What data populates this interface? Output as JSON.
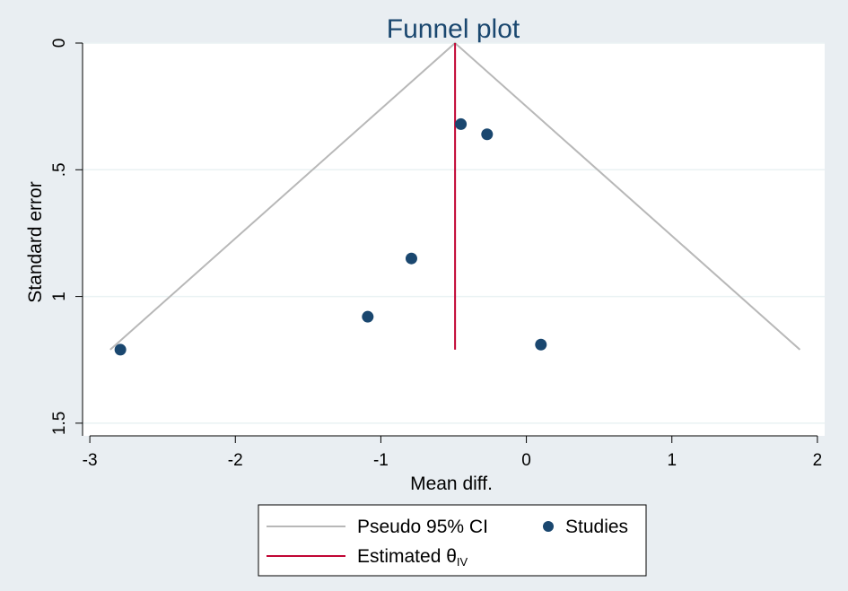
{
  "chart_data": {
    "type": "scatter",
    "title": "Funnel plot",
    "xlabel": "Mean diff.",
    "ylabel": "Standard error",
    "xlim": [
      -3.05,
      2.05
    ],
    "ylim": [
      1.55,
      0
    ],
    "y_reversed": true,
    "x_ticks": [
      "-3",
      "-2",
      "-1",
      "0",
      "1",
      "2"
    ],
    "x_tick_values": [
      -3,
      -2,
      -1,
      0,
      1,
      2
    ],
    "y_ticks": [
      "0",
      ".5",
      "1",
      "1.5"
    ],
    "y_tick_values": [
      0,
      0.5,
      1,
      1.5
    ],
    "grid": true,
    "legend_position": "bottom",
    "series": [
      {
        "name": "Studies",
        "kind": "points",
        "color": "#1a476f",
        "points": [
          {
            "x": -2.79,
            "y": 1.21
          },
          {
            "x": -1.09,
            "y": 1.08
          },
          {
            "x": -0.79,
            "y": 0.85
          },
          {
            "x": -0.45,
            "y": 0.32
          },
          {
            "x": -0.27,
            "y": 0.36
          },
          {
            "x": 0.1,
            "y": 1.19
          }
        ]
      },
      {
        "name": "Pseudo 95% CI",
        "kind": "line",
        "color": "#b8b8b8",
        "points": [
          {
            "x": -2.86,
            "y": 1.21
          },
          {
            "x": -0.49,
            "y": 0
          },
          {
            "x": 1.88,
            "y": 1.21
          }
        ]
      },
      {
        "name": "Estimated θIV",
        "kind": "line",
        "color": "#c10534",
        "points": [
          {
            "x": -0.49,
            "y": 0
          },
          {
            "x": -0.49,
            "y": 1.21
          }
        ]
      }
    ],
    "legend": {
      "ci_label": "Pseudo 95% CI",
      "studies_label": "Studies",
      "estimate_label_main": "Estimated θ",
      "estimate_label_sub": "IV"
    }
  }
}
